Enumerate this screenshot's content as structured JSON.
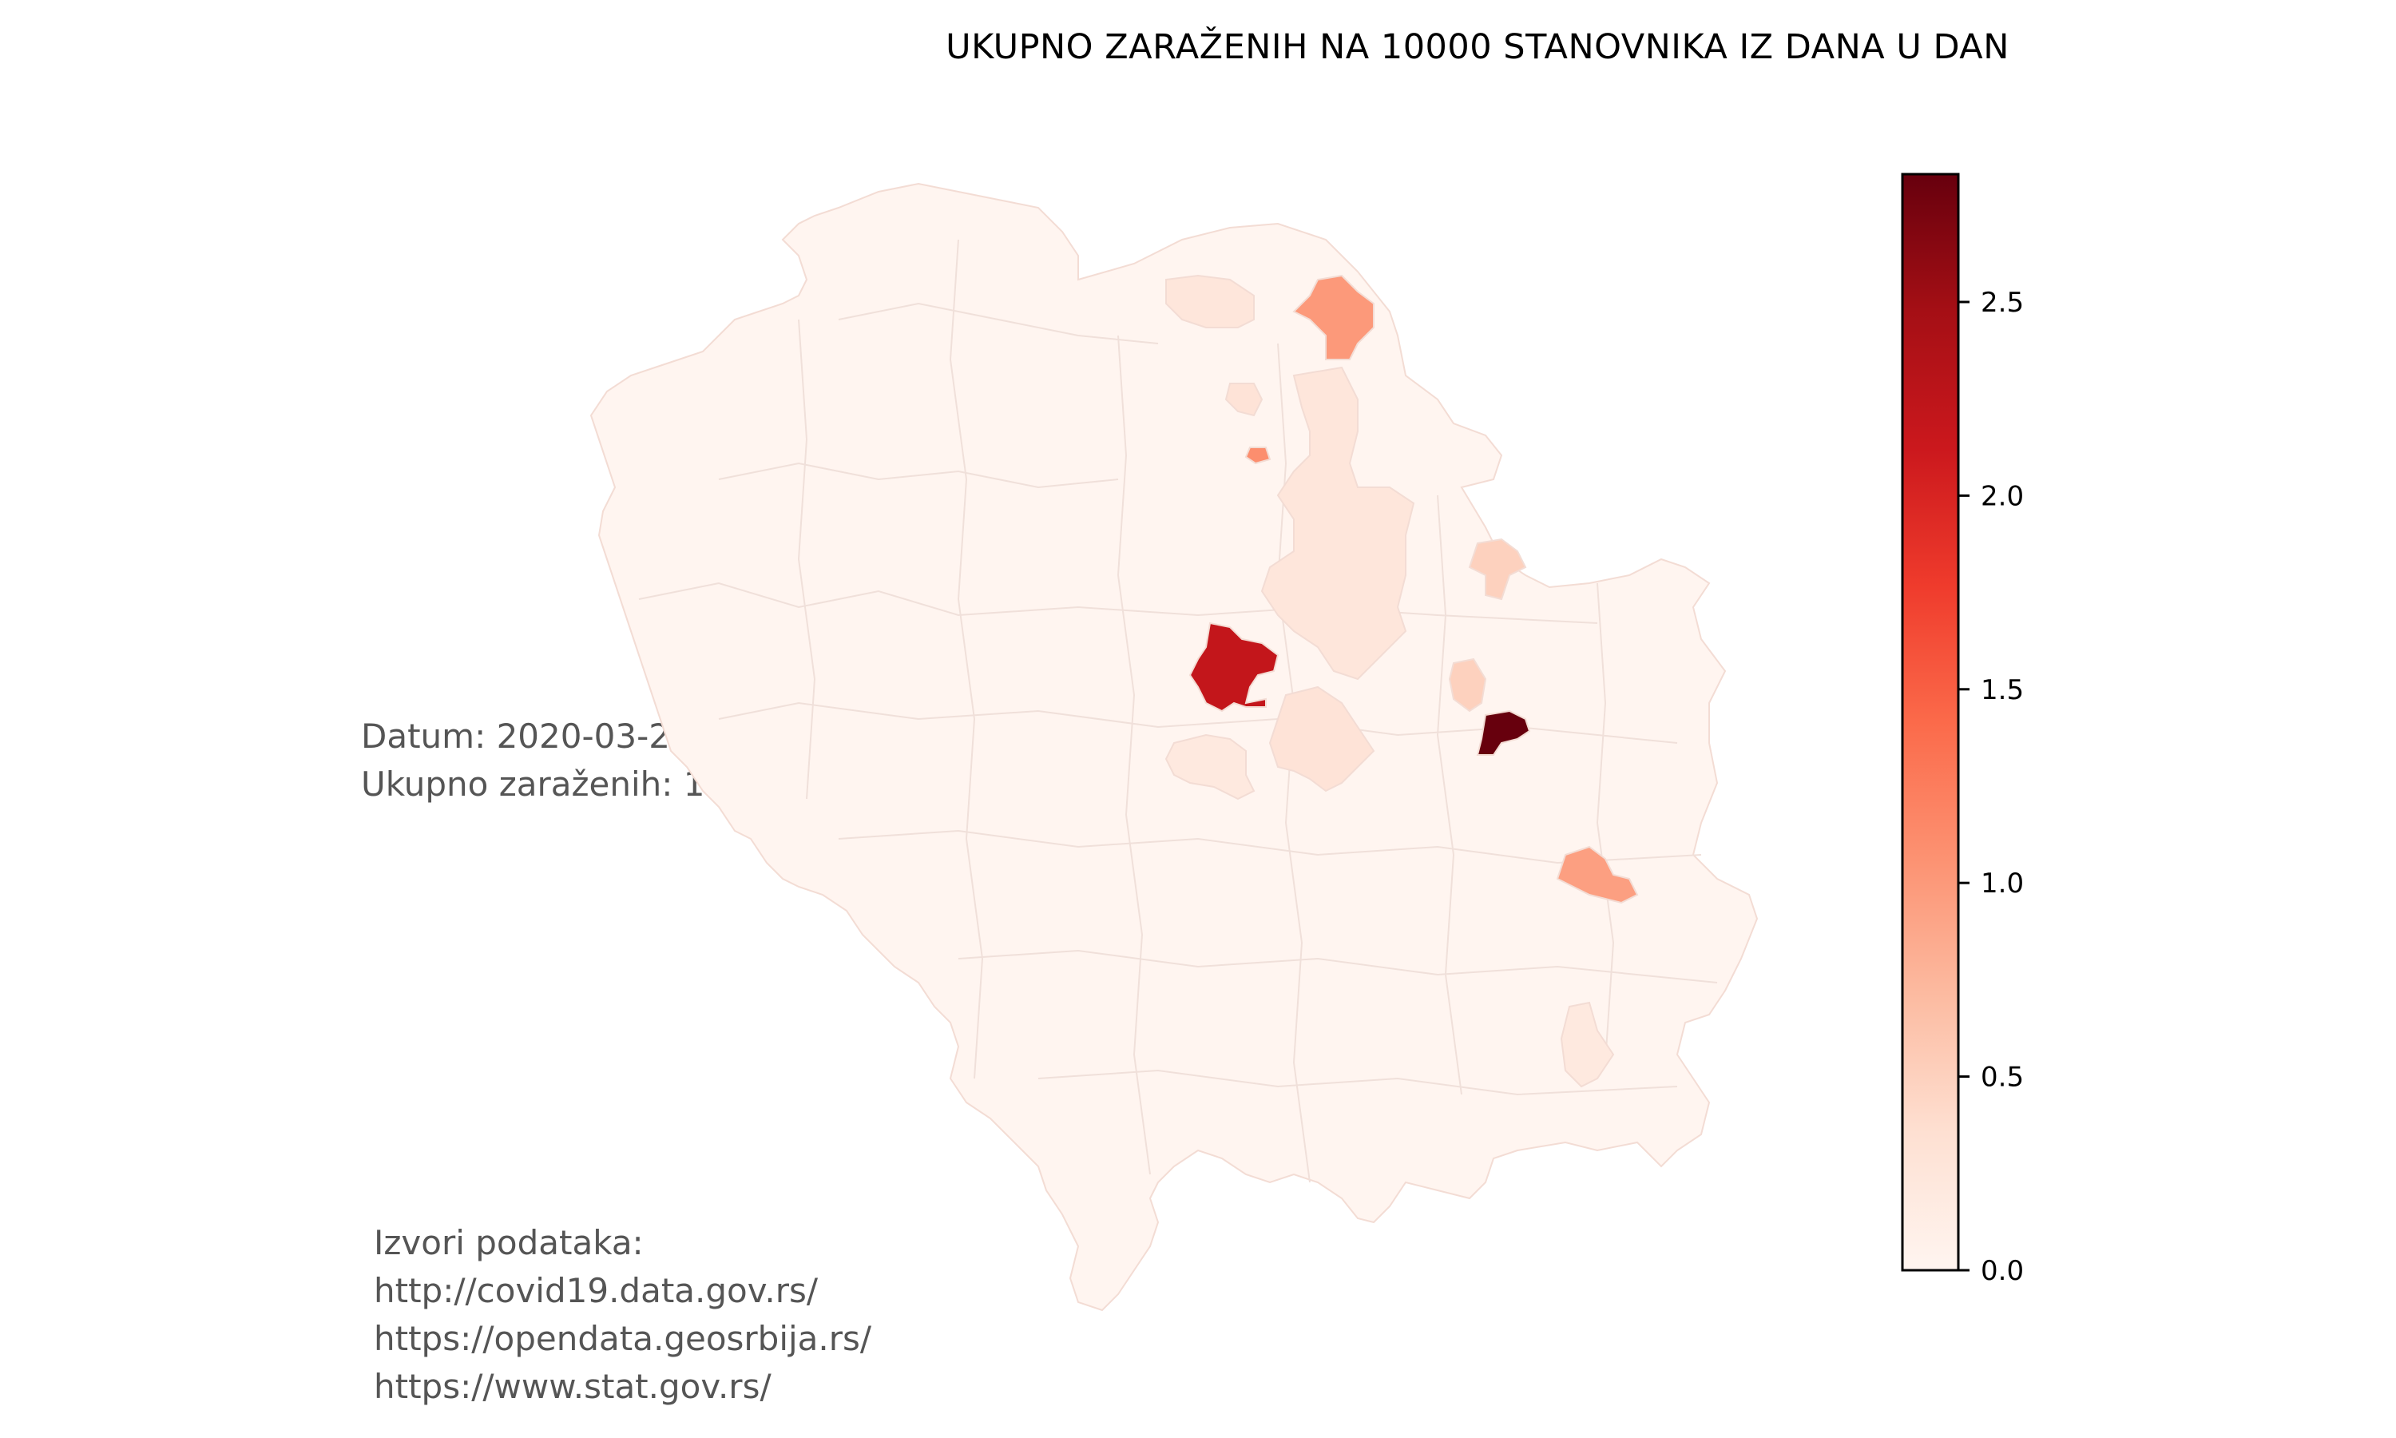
{
  "title": "UKUPNO ZARAŽENIH NA 10000 STANOVNIKA IZ DANA U DAN",
  "info": {
    "date_line": "Datum: 2020-03-20",
    "total_line": "Ukupno zaraženih: 135"
  },
  "sources": {
    "heading": "Izvori podataka:",
    "links": [
      "http://covid19.data.gov.rs/",
      "https://opendata.geosrbija.rs/",
      "https://www.stat.gov.rs/"
    ]
  },
  "colorbar": {
    "min": 0.0,
    "max": 2.83,
    "ticks": [
      "0.0",
      "0.5",
      "1.0",
      "1.5",
      "2.0",
      "2.5"
    ],
    "colors": [
      "#fff5f0",
      "#fee0d2",
      "#fcbba1",
      "#fc9272",
      "#fb6a4a",
      "#ef3b2c",
      "#cb181d",
      "#a50f15",
      "#67000d"
    ]
  },
  "regions": [
    {
      "name": "north-west-region",
      "value": 0.25
    },
    {
      "name": "north-east-region",
      "value": 1.0
    },
    {
      "name": "small-region-a",
      "value": 0.3
    },
    {
      "name": "small-region-b",
      "value": 1.1
    },
    {
      "name": "central-region",
      "value": 0.25
    },
    {
      "name": "east-region-a",
      "value": 0.5
    },
    {
      "name": "west-region-hotspot",
      "value": 2.2
    },
    {
      "name": "center-region-b",
      "value": 0.5
    },
    {
      "name": "south-center-region",
      "value": 0.3
    },
    {
      "name": "south-west-region",
      "value": 0.2
    },
    {
      "name": "center-east-hotspot",
      "value": 2.83
    },
    {
      "name": "south-east-region",
      "value": 0.95
    },
    {
      "name": "south-region",
      "value": 0.2
    }
  ]
}
